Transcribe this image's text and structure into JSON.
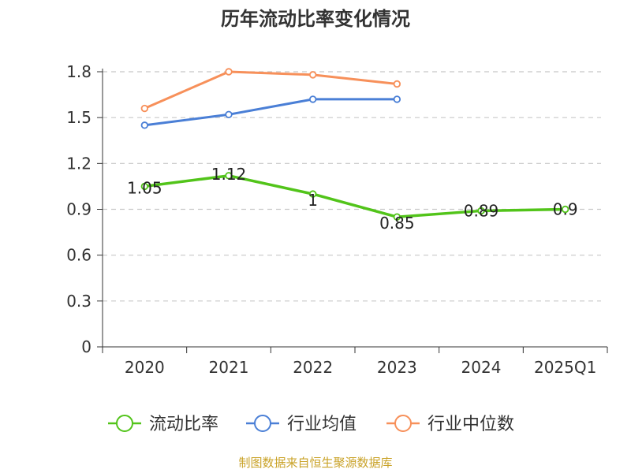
{
  "chart_data": {
    "type": "line",
    "title": "历年流动比率变化情况",
    "categories": [
      "2020",
      "2021",
      "2022",
      "2023",
      "2024",
      "2025Q1"
    ],
    "ylim": [
      0,
      1.8
    ],
    "yticks": [
      "0",
      "0.3",
      "0.6",
      "0.9",
      "1.2",
      "1.5",
      "1.8"
    ],
    "grid": true,
    "legend_position": "bottom",
    "series": [
      {
        "name": "流动比率",
        "color": "#52c41a",
        "values": [
          1.05,
          1.12,
          1.0,
          0.85,
          0.89,
          0.9
        ],
        "labels": [
          "1.05",
          "1.12",
          "1",
          "0.85",
          "0.89",
          "0.9"
        ],
        "show_labels": true
      },
      {
        "name": "行业均值",
        "color": "#4a7fd6",
        "values": [
          1.45,
          1.52,
          1.62,
          1.62,
          null,
          null
        ],
        "show_labels": false
      },
      {
        "name": "行业中位数",
        "color": "#f7905a",
        "values": [
          1.56,
          1.8,
          1.78,
          1.72,
          null,
          null
        ],
        "show_labels": false
      }
    ]
  },
  "source_note": "制图数据来自恒生聚源数据库"
}
